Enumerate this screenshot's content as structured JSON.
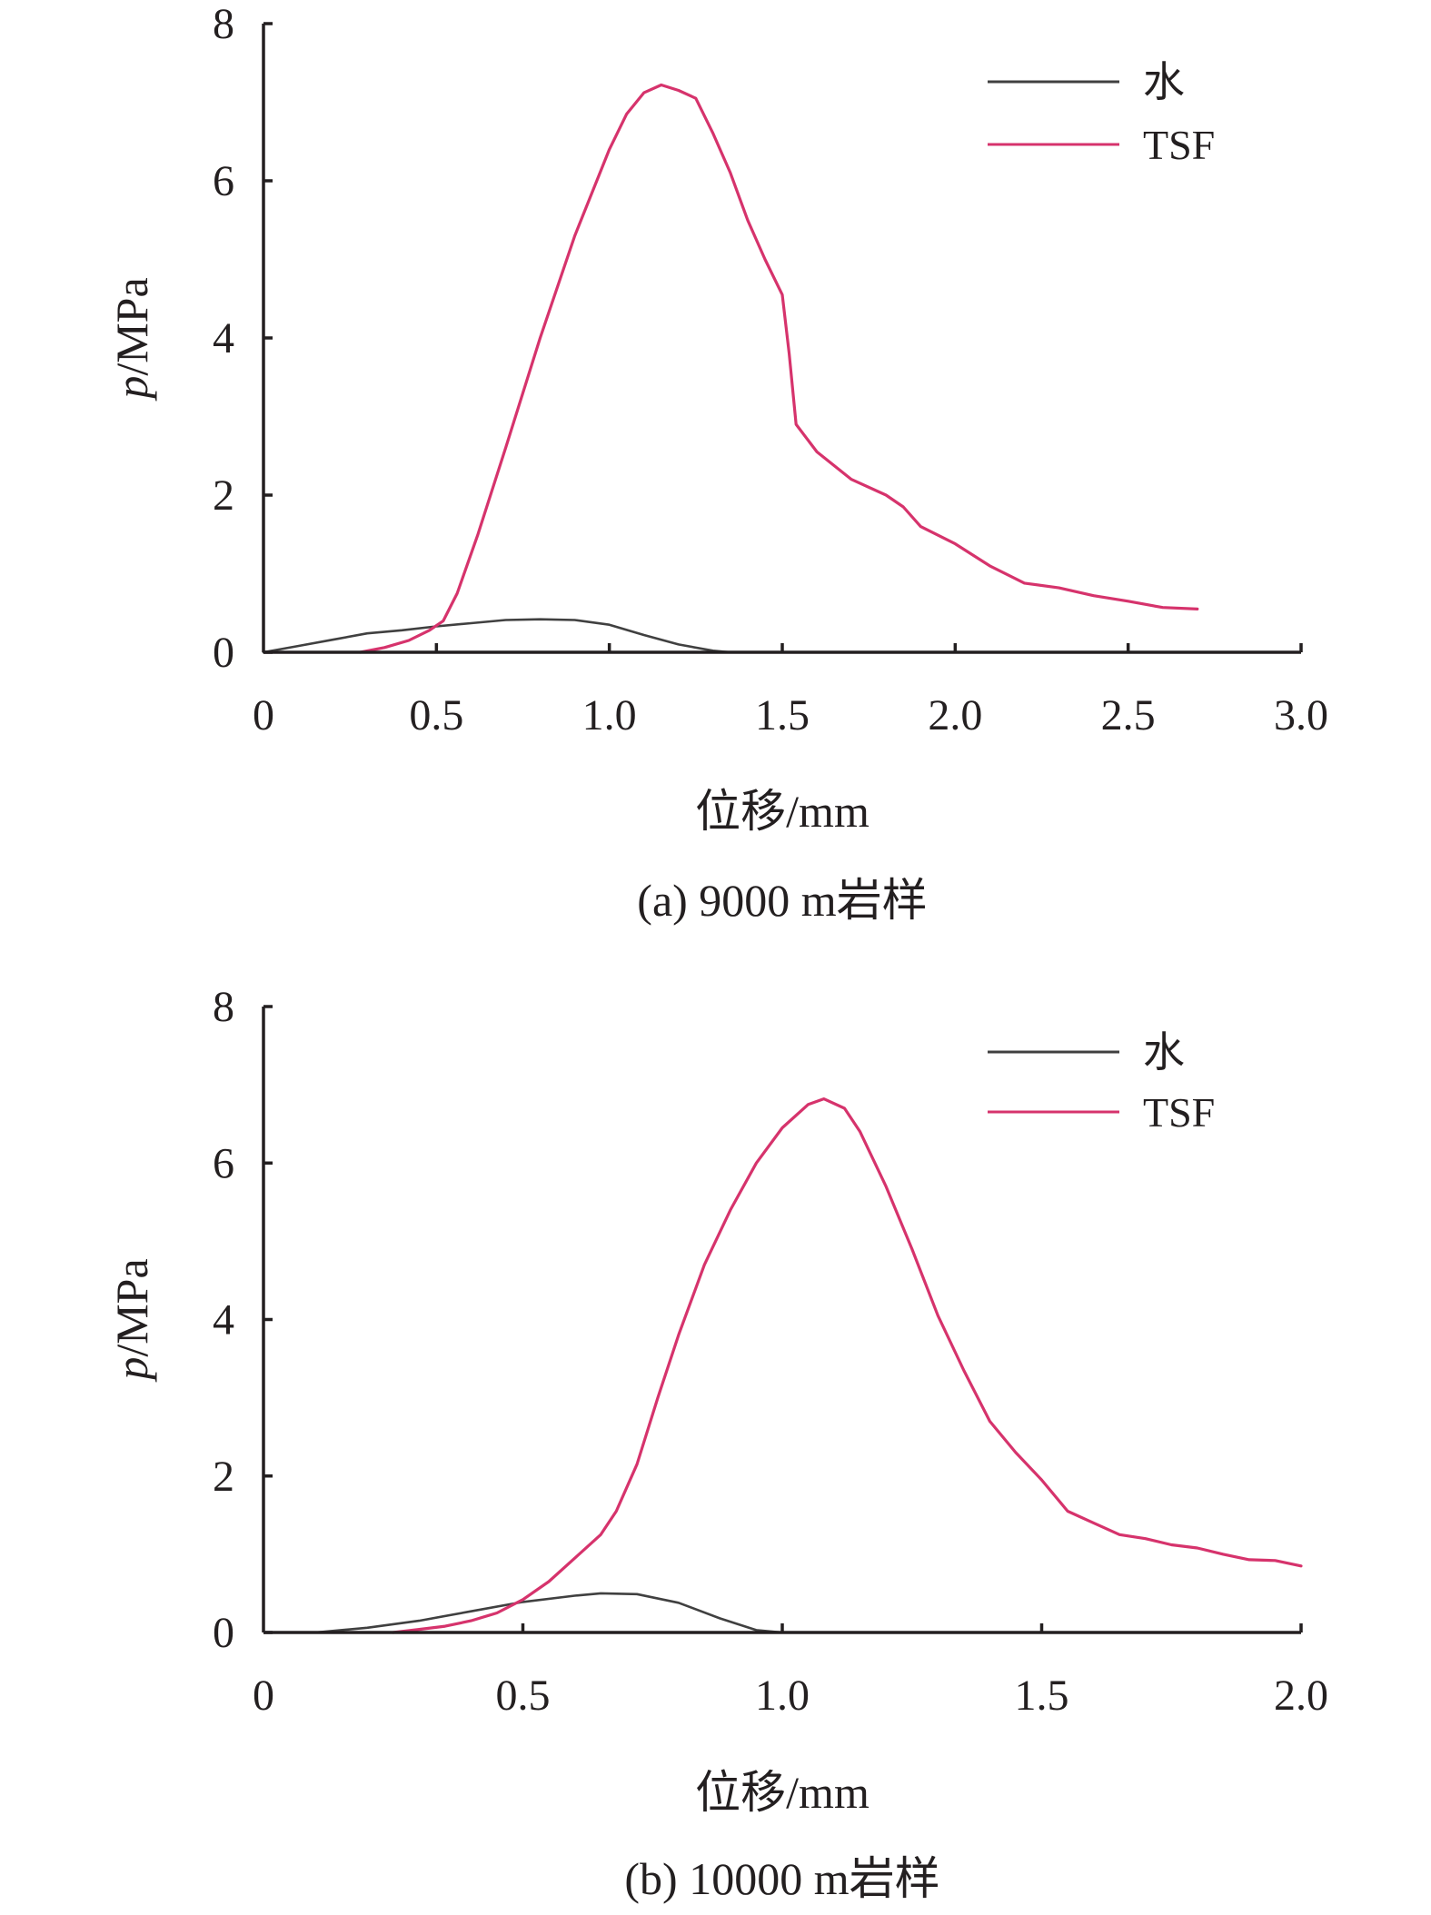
{
  "chart_data": [
    {
      "type": "line",
      "caption": "(a) 9000 m岩样",
      "xlabel": "位移/mm",
      "ylabel_italic": "p",
      "ylabel_unit": "/MPa",
      "xlim": [
        0,
        3.0
      ],
      "ylim": [
        0,
        8
      ],
      "xticks": [
        0,
        0.5,
        1.0,
        1.5,
        2.0,
        2.5,
        3.0
      ],
      "xtick_labels": [
        "0",
        "0.5",
        "1.0",
        "1.5",
        "2.0",
        "2.5",
        "3.0"
      ],
      "yticks": [
        0,
        2,
        4,
        6,
        8
      ],
      "ytick_labels": [
        "0",
        "2",
        "4",
        "6",
        "8"
      ],
      "grid": false,
      "legend_position": "top-right",
      "series": [
        {
          "name": "水",
          "color": "#404040",
          "points": [
            [
              0,
              0
            ],
            [
              0.1,
              0.08
            ],
            [
              0.2,
              0.16
            ],
            [
              0.3,
              0.24
            ],
            [
              0.4,
              0.28
            ],
            [
              0.5,
              0.33
            ],
            [
              0.6,
              0.37
            ],
            [
              0.7,
              0.41
            ],
            [
              0.8,
              0.42
            ],
            [
              0.9,
              0.41
            ],
            [
              1.0,
              0.35
            ],
            [
              1.1,
              0.22
            ],
            [
              1.2,
              0.1
            ],
            [
              1.3,
              0.02
            ],
            [
              1.35,
              0
            ]
          ]
        },
        {
          "name": "TSF",
          "color": "#d6336c",
          "points": [
            [
              0.28,
              0
            ],
            [
              0.35,
              0.06
            ],
            [
              0.42,
              0.15
            ],
            [
              0.48,
              0.28
            ],
            [
              0.52,
              0.4
            ],
            [
              0.56,
              0.75
            ],
            [
              0.62,
              1.5
            ],
            [
              0.7,
              2.6
            ],
            [
              0.8,
              4.0
            ],
            [
              0.9,
              5.3
            ],
            [
              1.0,
              6.4
            ],
            [
              1.05,
              6.85
            ],
            [
              1.1,
              7.12
            ],
            [
              1.15,
              7.22
            ],
            [
              1.2,
              7.15
            ],
            [
              1.25,
              7.05
            ],
            [
              1.3,
              6.6
            ],
            [
              1.35,
              6.1
            ],
            [
              1.4,
              5.5
            ],
            [
              1.45,
              5.0
            ],
            [
              1.5,
              4.55
            ],
            [
              1.52,
              3.8
            ],
            [
              1.54,
              2.9
            ],
            [
              1.6,
              2.55
            ],
            [
              1.7,
              2.2
            ],
            [
              1.8,
              2.0
            ],
            [
              1.85,
              1.85
            ],
            [
              1.9,
              1.6
            ],
            [
              2.0,
              1.38
            ],
            [
              2.1,
              1.1
            ],
            [
              2.2,
              0.88
            ],
            [
              2.3,
              0.82
            ],
            [
              2.4,
              0.72
            ],
            [
              2.5,
              0.65
            ],
            [
              2.6,
              0.57
            ],
            [
              2.7,
              0.55
            ]
          ]
        }
      ]
    },
    {
      "type": "line",
      "caption": "(b) 10000 m岩样",
      "xlabel": "位移/mm",
      "ylabel_italic": "p",
      "ylabel_unit": "/MPa",
      "xlim": [
        0,
        2.0
      ],
      "ylim": [
        0,
        8
      ],
      "xticks": [
        0,
        0.5,
        1.0,
        1.5,
        2.0
      ],
      "xtick_labels": [
        "0",
        "0.5",
        "1.0",
        "1.5",
        "2.0"
      ],
      "yticks": [
        0,
        2,
        4,
        6,
        8
      ],
      "ytick_labels": [
        "0",
        "2",
        "4",
        "6",
        "8"
      ],
      "grid": false,
      "legend_position": "top-right",
      "series": [
        {
          "name": "水",
          "color": "#404040",
          "points": [
            [
              0.1,
              0
            ],
            [
              0.2,
              0.06
            ],
            [
              0.3,
              0.15
            ],
            [
              0.4,
              0.27
            ],
            [
              0.5,
              0.39
            ],
            [
              0.6,
              0.47
            ],
            [
              0.65,
              0.5
            ],
            [
              0.72,
              0.49
            ],
            [
              0.8,
              0.38
            ],
            [
              0.88,
              0.18
            ],
            [
              0.95,
              0.03
            ],
            [
              1.0,
              0
            ]
          ]
        },
        {
          "name": "TSF",
          "color": "#d6336c",
          "points": [
            [
              0.25,
              0
            ],
            [
              0.3,
              0.04
            ],
            [
              0.35,
              0.08
            ],
            [
              0.4,
              0.15
            ],
            [
              0.45,
              0.25
            ],
            [
              0.5,
              0.42
            ],
            [
              0.55,
              0.65
            ],
            [
              0.6,
              0.95
            ],
            [
              0.65,
              1.25
            ],
            [
              0.68,
              1.55
            ],
            [
              0.72,
              2.15
            ],
            [
              0.76,
              3.0
            ],
            [
              0.8,
              3.8
            ],
            [
              0.85,
              4.7
            ],
            [
              0.9,
              5.4
            ],
            [
              0.95,
              6.0
            ],
            [
              1.0,
              6.45
            ],
            [
              1.05,
              6.75
            ],
            [
              1.08,
              6.82
            ],
            [
              1.12,
              6.7
            ],
            [
              1.15,
              6.4
            ],
            [
              1.2,
              5.7
            ],
            [
              1.25,
              4.9
            ],
            [
              1.3,
              4.05
            ],
            [
              1.35,
              3.35
            ],
            [
              1.4,
              2.7
            ],
            [
              1.45,
              2.3
            ],
            [
              1.5,
              1.95
            ],
            [
              1.55,
              1.55
            ],
            [
              1.6,
              1.4
            ],
            [
              1.65,
              1.25
            ],
            [
              1.7,
              1.2
            ],
            [
              1.75,
              1.12
            ],
            [
              1.8,
              1.08
            ],
            [
              1.85,
              1.0
            ],
            [
              1.9,
              0.93
            ],
            [
              1.95,
              0.92
            ],
            [
              2.0,
              0.85
            ]
          ]
        }
      ]
    }
  ]
}
